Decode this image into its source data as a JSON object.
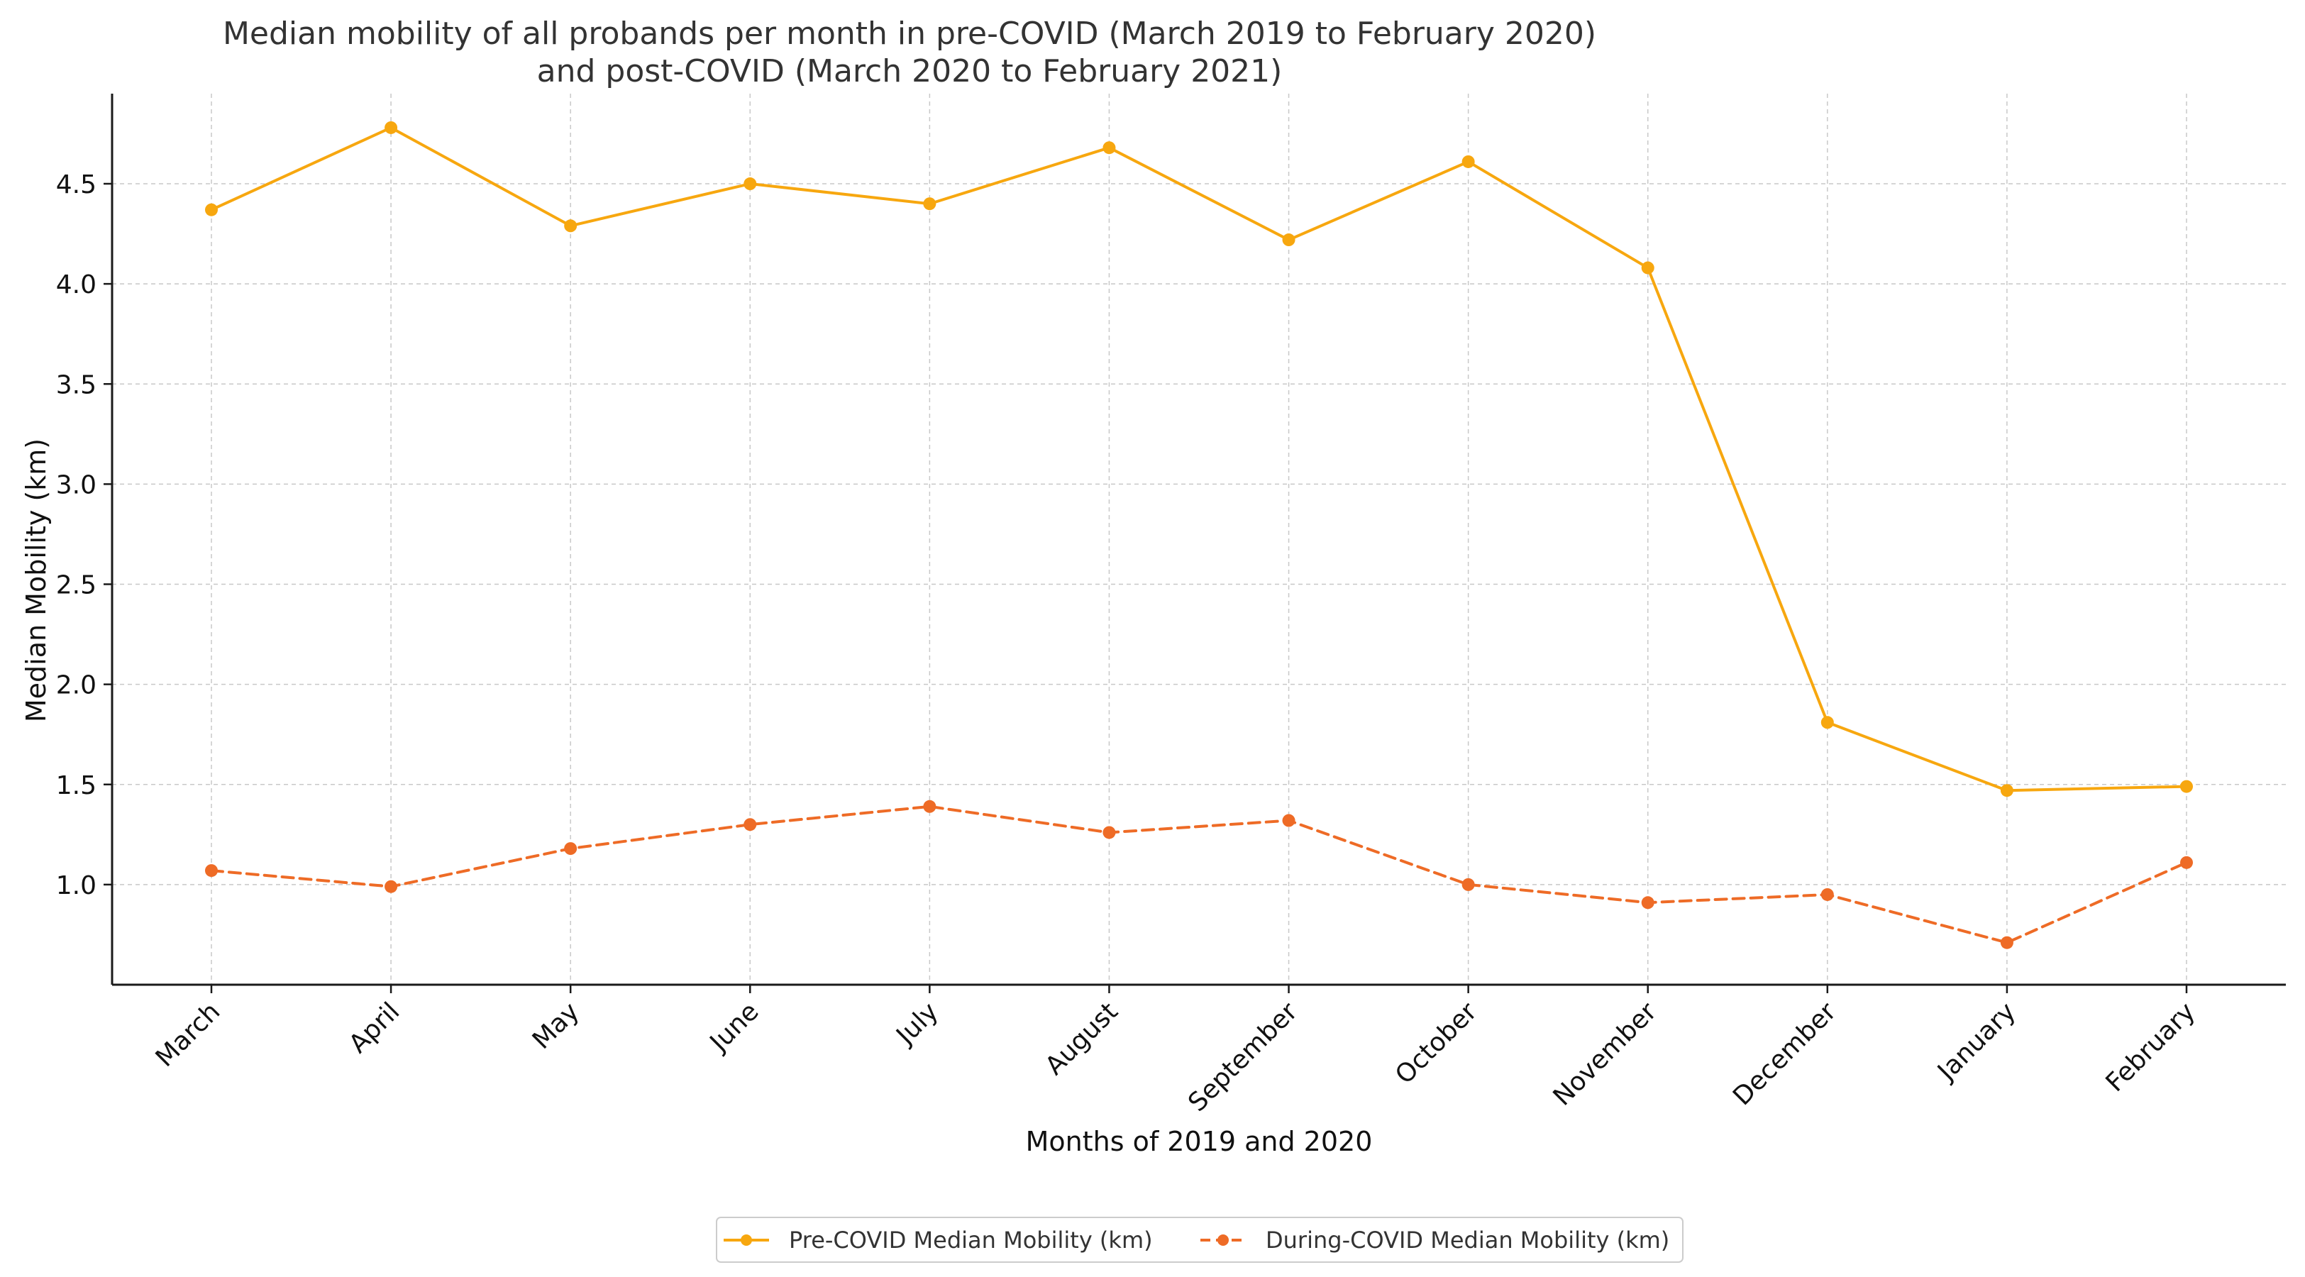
{
  "chart_data": {
    "type": "line",
    "title": "Median mobility of all probands per month in pre-COVID (March 2019 to February 2020)",
    "subtitle": "and post-COVID (March 2020 to February 2021)",
    "xlabel": "Months of 2019 and 2020",
    "ylabel": "Median Mobility (km)",
    "categories": [
      "March",
      "April",
      "May",
      "June",
      "July",
      "August",
      "September",
      "October",
      "November",
      "December",
      "January",
      "February"
    ],
    "ylim": [
      0.5,
      4.95
    ],
    "yticks": [
      1.0,
      1.5,
      2.0,
      2.5,
      3.0,
      3.5,
      4.0,
      4.5
    ],
    "ytick_labels": [
      "1.0",
      "1.5",
      "2.0",
      "2.5",
      "3.0",
      "3.5",
      "4.0",
      "4.5"
    ],
    "grid": true,
    "legend_position": "bottom-center",
    "series": [
      {
        "name": "Pre-COVID Median Mobility (km)",
        "color": "#f7a70f",
        "style": "solid",
        "marker": "circle",
        "values": [
          4.37,
          4.78,
          4.29,
          4.5,
          4.4,
          4.68,
          4.22,
          4.61,
          4.08,
          1.81,
          1.47,
          1.49
        ]
      },
      {
        "name": "During-COVID Median Mobility (km)",
        "color": "#ee6b26",
        "style": "dashed",
        "marker": "circle",
        "values": [
          1.07,
          0.99,
          1.18,
          1.3,
          1.39,
          1.26,
          1.32,
          1.0,
          0.91,
          0.95,
          0.71,
          1.11
        ]
      }
    ]
  },
  "colors": {
    "axis": "#1a1a1a",
    "grid": "#c8c8c8",
    "legend_border": "#cccccc"
  }
}
